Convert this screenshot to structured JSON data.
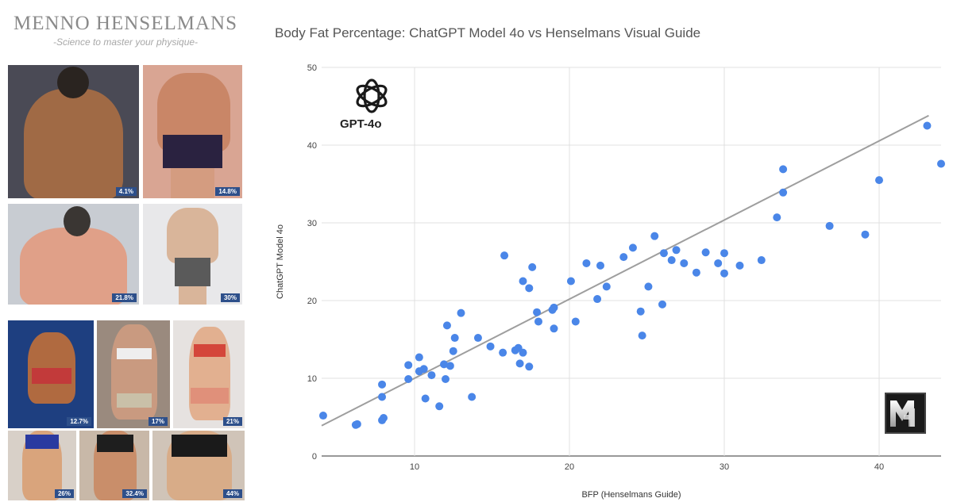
{
  "brand": {
    "name": "MENNO HENSELMANS",
    "tagline": "-Science to master your physique-"
  },
  "photos": [
    {
      "id": "p1",
      "label": "4.1%"
    },
    {
      "id": "p2",
      "label": "14.8%"
    },
    {
      "id": "p3",
      "label": "21.8%"
    },
    {
      "id": "p4",
      "label": "30%"
    },
    {
      "id": "p5",
      "label": "12.7%"
    },
    {
      "id": "p6",
      "label": "17%"
    },
    {
      "id": "p7",
      "label": "21%"
    },
    {
      "id": "p8",
      "label": "26%"
    },
    {
      "id": "p9",
      "label": "32.4%"
    },
    {
      "id": "p10",
      "label": "44%"
    }
  ],
  "logos": {
    "gpt_label": "GPT-4o"
  },
  "colors": {
    "point": "#4a86e8",
    "trendline": "#9e9e9e",
    "grid": "#e0e0e0"
  },
  "chart_data": {
    "type": "scatter",
    "title": "Body Fat Percentage: ChatGPT Model 4o vs Henselmans Visual Guide",
    "xlabel": "BFP (Henselmans Guide)",
    "ylabel": "ChatGPT Model 4o",
    "xlim": [
      4,
      44
    ],
    "ylim": [
      0,
      50
    ],
    "xticks": [
      10,
      20,
      30,
      40
    ],
    "yticks": [
      0,
      10,
      20,
      30,
      40,
      50
    ],
    "grid": true,
    "trendline": {
      "from": [
        4,
        3.9
      ],
      "to": [
        43.2,
        43.8
      ]
    },
    "points": [
      [
        4.1,
        5.2
      ],
      [
        6.2,
        4.0
      ],
      [
        6.3,
        4.1
      ],
      [
        7.9,
        4.6
      ],
      [
        8.0,
        4.9
      ],
      [
        7.9,
        7.6
      ],
      [
        7.9,
        9.2
      ],
      [
        9.6,
        9.9
      ],
      [
        9.6,
        11.7
      ],
      [
        10.3,
        10.9
      ],
      [
        10.6,
        11.2
      ],
      [
        10.3,
        12.7
      ],
      [
        10.7,
        7.4
      ],
      [
        11.1,
        10.4
      ],
      [
        11.6,
        6.4
      ],
      [
        11.9,
        11.8
      ],
      [
        12.0,
        9.9
      ],
      [
        12.1,
        16.8
      ],
      [
        12.3,
        11.6
      ],
      [
        12.5,
        13.5
      ],
      [
        12.6,
        15.2
      ],
      [
        13.0,
        18.4
      ],
      [
        13.7,
        7.6
      ],
      [
        14.1,
        15.2
      ],
      [
        14.9,
        14.1
      ],
      [
        15.7,
        13.3
      ],
      [
        15.8,
        25.8
      ],
      [
        16.5,
        13.6
      ],
      [
        16.7,
        13.9
      ],
      [
        16.8,
        11.9
      ],
      [
        17.0,
        13.3
      ],
      [
        17.0,
        22.5
      ],
      [
        17.4,
        11.5
      ],
      [
        17.4,
        21.6
      ],
      [
        17.6,
        24.3
      ],
      [
        17.9,
        18.5
      ],
      [
        18.0,
        17.3
      ],
      [
        18.9,
        18.8
      ],
      [
        19.0,
        16.4
      ],
      [
        19.0,
        19.1
      ],
      [
        20.1,
        22.5
      ],
      [
        20.4,
        17.3
      ],
      [
        21.1,
        24.8
      ],
      [
        21.8,
        20.2
      ],
      [
        22.0,
        24.5
      ],
      [
        22.4,
        21.8
      ],
      [
        23.5,
        25.6
      ],
      [
        24.1,
        26.8
      ],
      [
        24.6,
        18.6
      ],
      [
        24.7,
        15.5
      ],
      [
        25.1,
        21.8
      ],
      [
        25.5,
        28.3
      ],
      [
        26.0,
        19.5
      ],
      [
        26.1,
        26.1
      ],
      [
        26.6,
        25.2
      ],
      [
        26.9,
        26.5
      ],
      [
        27.4,
        24.8
      ],
      [
        28.2,
        23.6
      ],
      [
        28.8,
        26.2
      ],
      [
        29.6,
        24.8
      ],
      [
        30.0,
        26.1
      ],
      [
        30.0,
        23.5
      ],
      [
        31.0,
        24.5
      ],
      [
        32.4,
        25.2
      ],
      [
        33.4,
        30.7
      ],
      [
        33.8,
        36.9
      ],
      [
        33.8,
        33.9
      ],
      [
        36.8,
        29.6
      ],
      [
        39.1,
        28.5
      ],
      [
        40.0,
        35.5
      ],
      [
        43.1,
        42.5
      ],
      [
        44.0,
        37.6
      ]
    ]
  }
}
